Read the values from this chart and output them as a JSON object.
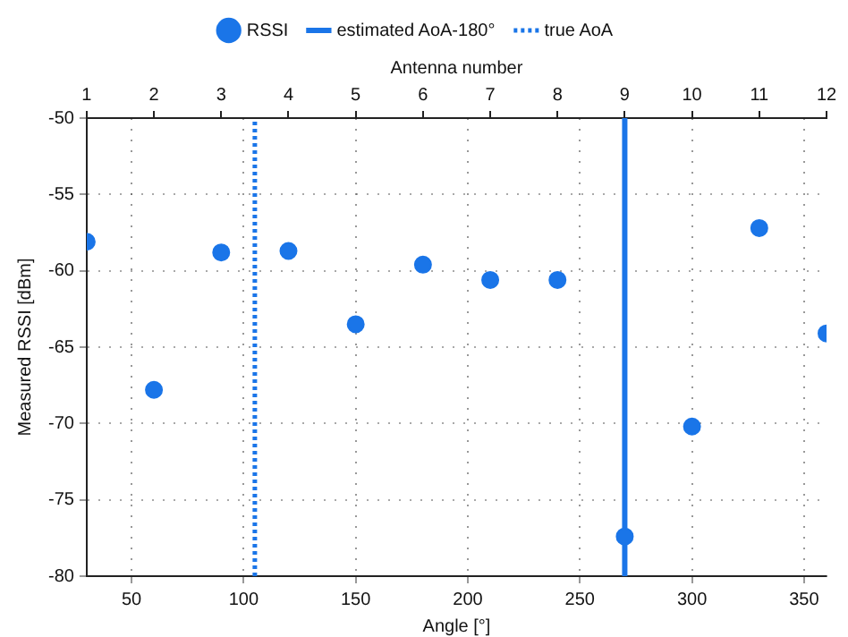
{
  "chart_data": {
    "type": "scatter",
    "xlabel": "Angle [°]",
    "ylabel": "Measured RSSI [dBm]",
    "x2label": "Antenna number",
    "x": [
      30,
      60,
      90,
      120,
      150,
      180,
      210,
      240,
      270,
      300,
      330,
      360
    ],
    "series": [
      {
        "name": "RSSI",
        "color": "#1a75e8",
        "values": [
          -58.1,
          -67.8,
          -58.8,
          -58.7,
          -63.5,
          -59.6,
          -60.6,
          -60.6,
          -77.4,
          -70.2,
          -57.2,
          -64.1
        ]
      }
    ],
    "xlim": [
      30,
      360
    ],
    "xticks": [
      50,
      100,
      150,
      200,
      250,
      300,
      350
    ],
    "x2lim": [
      1,
      12
    ],
    "x2ticks": [
      1,
      2,
      3,
      4,
      5,
      6,
      7,
      8,
      9,
      10,
      11,
      12
    ],
    "ylim": [
      -80,
      -50
    ],
    "yticks": [
      -80,
      -75,
      -70,
      -65,
      -60,
      -55,
      -50
    ],
    "ref_lines": [
      {
        "axis": "x",
        "value": 270,
        "label": "estimated AoA-180°",
        "color": "#1a75e8",
        "line_style": "solid"
      },
      {
        "axis": "x",
        "value": 105,
        "label": "true AoA",
        "color": "#1a75e8",
        "line_style": "dotted"
      }
    ],
    "grid": true,
    "legend": "top",
    "marker": "circle"
  }
}
